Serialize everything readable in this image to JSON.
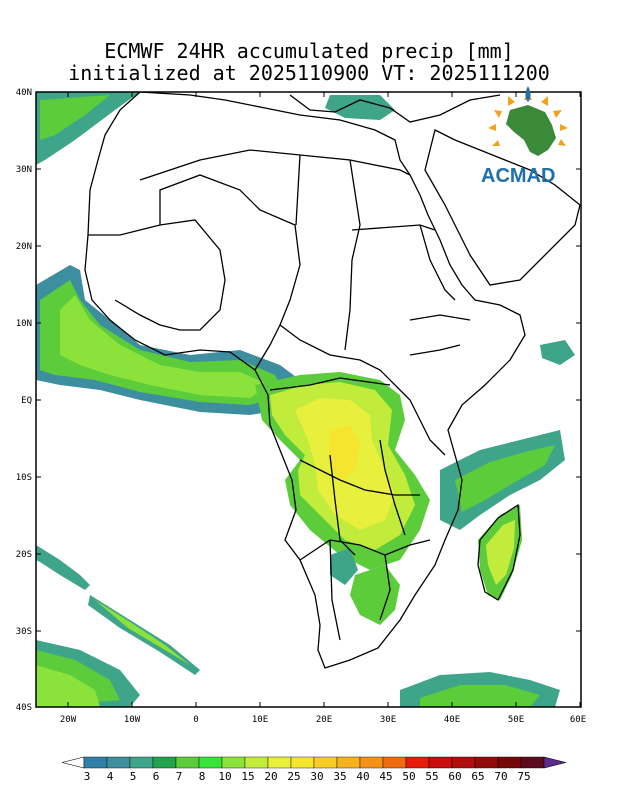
{
  "title": {
    "line1": "ECMWF 24HR accumulated precip [mm]",
    "line2": "initialized at 2025110900 VT: 2025111200"
  },
  "logo": {
    "text": "ACMAD"
  },
  "axes": {
    "lat_labels": [
      "40N",
      "30N",
      "20N",
      "10N",
      "EQ",
      "10S",
      "20S",
      "30S",
      "40S"
    ],
    "lon_labels": [
      "20W",
      "10W",
      "0",
      "10E",
      "20E",
      "30E",
      "40E",
      "50E",
      "60E"
    ]
  },
  "colorbar": {
    "labels": [
      "3",
      "4",
      "5",
      "6",
      "7",
      "8",
      "10",
      "15",
      "20",
      "25",
      "30",
      "35",
      "40",
      "45",
      "50",
      "55",
      "60",
      "65",
      "70",
      "75"
    ],
    "colors": [
      "#2f7fa6",
      "#3d8e9e",
      "#3fa58a",
      "#22a24a",
      "#5ccc3a",
      "#38e33a",
      "#8be23a",
      "#c2ec3c",
      "#e8ef3c",
      "#f5e52e",
      "#f7cc24",
      "#f6b11e",
      "#f49218",
      "#f06a10",
      "#e81a0a",
      "#cc0d0d",
      "#b00d0d",
      "#940b0b",
      "#740808",
      "#5e0a1e"
    ],
    "end_color": "#5a2a8c"
  }
}
